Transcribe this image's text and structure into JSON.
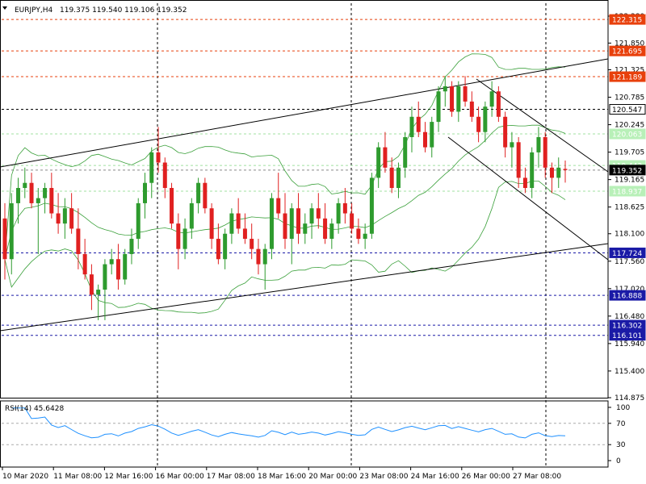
{
  "header": {
    "symbol": "EURJPY,H4",
    "ohlc": "119.375 119.540 119.106 119.352"
  },
  "rsi": {
    "label": "RSI(14) 45.6428",
    "levels": [
      "100",
      "70",
      "30",
      "0"
    ]
  },
  "price_axis": {
    "ticks": [
      "122.380",
      "121.850",
      "121.325",
      "120.785",
      "120.245",
      "119.705",
      "119.165",
      "118.625",
      "118.100",
      "117.560",
      "117.020",
      "116.480",
      "115.940",
      "115.400",
      "114.875"
    ]
  },
  "price_tags": [
    {
      "label": "122.315",
      "price": 122.315,
      "bg": "#e8400c",
      "fg": "#ffffff",
      "line": "#e8400c"
    },
    {
      "label": "121.695",
      "price": 121.695,
      "bg": "#e8400c",
      "fg": "#ffffff",
      "line": "#e8400c"
    },
    {
      "label": "121.189",
      "price": 121.189,
      "bg": "#e8400c",
      "fg": "#ffffff",
      "line": "#e8400c"
    },
    {
      "label": "120.547",
      "price": 120.547,
      "bg": "#ffffff",
      "fg": "#000000",
      "line": "#000000",
      "border": "#000000"
    },
    {
      "label": "120.063",
      "price": 120.063,
      "bg": "#b8f0b8",
      "fg": "#ffffff",
      "line": "#a0e0a0"
    },
    {
      "label": "119.443",
      "price": 119.443,
      "bg": "#b8f0b8",
      "fg": "#ffffff",
      "line": "#a0e0a0"
    },
    {
      "label": "119.352",
      "price": 119.352,
      "bg": "#000000",
      "fg": "#ffffff",
      "line": "#888888"
    },
    {
      "label": "118.937",
      "price": 118.937,
      "bg": "#b8f0b8",
      "fg": "#ffffff",
      "line": "#a0e0a0"
    },
    {
      "label": "117.724",
      "price": 117.724,
      "bg": "#1a1aa6",
      "fg": "#ffffff",
      "line": "#1a1aa6"
    },
    {
      "label": "116.888",
      "price": 116.888,
      "bg": "#1a1aa6",
      "fg": "#ffffff",
      "line": "#1a1aa6"
    },
    {
      "label": "116.302",
      "price": 116.302,
      "bg": "#1a1aa6",
      "fg": "#ffffff",
      "line": "#1a1aa6"
    },
    {
      "label": "116.101",
      "price": 116.101,
      "bg": "#1a1aa6",
      "fg": "#ffffff",
      "line": "#1a1aa6"
    }
  ],
  "time_axis": {
    "labels": [
      "10 Mar 2020",
      "11 Mar 08:00",
      "12 Mar 16:00",
      "16 Mar 00:00",
      "17 Mar 08:00",
      "18 Mar 16:00",
      "20 Mar 00:00",
      "23 Mar 08:00",
      "24 Mar 16:00",
      "26 Mar 00:00",
      "27 Mar 08:00"
    ]
  },
  "colors": {
    "bull": "#2e9b2e",
    "bear": "#e02020",
    "band": "#3aa03a",
    "trend": "#000000",
    "grid": "#000000"
  },
  "chart_data": {
    "type": "candlestick",
    "title": "EURJPY,H4",
    "ylim": [
      114.875,
      122.38
    ],
    "candles": [
      [
        118.4,
        118.7,
        117.2,
        117.6
      ],
      [
        117.6,
        118.9,
        117.3,
        118.7
      ],
      [
        118.7,
        119.2,
        118.3,
        119.0
      ],
      [
        119.0,
        119.4,
        118.8,
        119.1
      ],
      [
        119.1,
        119.3,
        118.6,
        118.7
      ],
      [
        118.7,
        119.0,
        117.7,
        118.8
      ],
      [
        118.8,
        119.1,
        118.5,
        119.0
      ],
      [
        119.0,
        119.3,
        118.4,
        118.5
      ],
      [
        118.5,
        118.9,
        118.1,
        118.3
      ],
      [
        118.3,
        118.8,
        118.0,
        118.6
      ],
      [
        118.6,
        118.9,
        118.1,
        118.2
      ],
      [
        118.2,
        118.6,
        117.4,
        117.7
      ],
      [
        117.7,
        118.0,
        117.2,
        117.3
      ],
      [
        117.3,
        117.5,
        116.6,
        116.9
      ],
      [
        116.9,
        117.1,
        116.4,
        117.0
      ],
      [
        117.0,
        117.6,
        116.4,
        117.5
      ],
      [
        117.5,
        117.8,
        117.3,
        117.6
      ],
      [
        117.6,
        117.9,
        117.0,
        117.2
      ],
      [
        117.2,
        117.8,
        117.1,
        117.7
      ],
      [
        117.7,
        118.2,
        117.5,
        118.0
      ],
      [
        118.0,
        118.8,
        117.8,
        118.7
      ],
      [
        118.7,
        119.3,
        118.4,
        119.1
      ],
      [
        119.1,
        119.8,
        118.8,
        119.7
      ],
      [
        119.7,
        120.2,
        119.3,
        119.5
      ],
      [
        119.5,
        119.6,
        118.8,
        119.0
      ],
      [
        119.0,
        119.1,
        118.2,
        118.3
      ],
      [
        118.3,
        118.5,
        117.4,
        117.8
      ],
      [
        117.8,
        118.4,
        117.6,
        118.2
      ],
      [
        118.2,
        118.8,
        118.0,
        118.7
      ],
      [
        118.7,
        119.2,
        118.5,
        119.1
      ],
      [
        119.1,
        119.2,
        118.5,
        118.6
      ],
      [
        118.6,
        118.7,
        117.8,
        118.0
      ],
      [
        118.0,
        118.3,
        117.5,
        117.6
      ],
      [
        117.6,
        118.2,
        117.4,
        118.1
      ],
      [
        118.1,
        118.6,
        117.9,
        118.5
      ],
      [
        118.5,
        118.8,
        118.1,
        118.2
      ],
      [
        118.2,
        118.5,
        117.9,
        118.0
      ],
      [
        118.0,
        118.3,
        117.6,
        117.8
      ],
      [
        117.8,
        118.0,
        117.3,
        117.5
      ],
      [
        117.5,
        117.9,
        117.0,
        117.8
      ],
      [
        117.8,
        118.9,
        117.6,
        118.8
      ],
      [
        118.8,
        119.3,
        118.4,
        118.5
      ],
      [
        118.5,
        118.9,
        117.8,
        118.0
      ],
      [
        118.0,
        118.7,
        117.5,
        118.6
      ],
      [
        118.6,
        118.9,
        117.9,
        118.1
      ],
      [
        118.1,
        118.5,
        117.9,
        118.3
      ],
      [
        118.3,
        118.7,
        118.0,
        118.6
      ],
      [
        118.6,
        118.9,
        118.2,
        118.4
      ],
      [
        118.4,
        118.7,
        117.9,
        118.0
      ],
      [
        118.0,
        118.4,
        117.8,
        118.3
      ],
      [
        118.3,
        118.8,
        118.1,
        118.7
      ],
      [
        118.7,
        119.0,
        118.3,
        118.5
      ],
      [
        118.5,
        118.7,
        118.1,
        118.2
      ],
      [
        118.2,
        118.4,
        117.9,
        118.0
      ],
      [
        118.0,
        118.3,
        117.8,
        118.1
      ],
      [
        118.1,
        119.3,
        118.0,
        119.2
      ],
      [
        119.2,
        119.9,
        119.0,
        119.8
      ],
      [
        119.8,
        120.1,
        119.3,
        119.4
      ],
      [
        119.4,
        119.6,
        118.9,
        119.0
      ],
      [
        119.0,
        119.5,
        118.8,
        119.4
      ],
      [
        119.4,
        120.1,
        119.2,
        120.0
      ],
      [
        120.0,
        120.6,
        119.7,
        120.4
      ],
      [
        120.4,
        120.7,
        120.0,
        120.1
      ],
      [
        120.1,
        120.3,
        119.7,
        119.8
      ],
      [
        119.8,
        120.4,
        119.6,
        120.3
      ],
      [
        120.3,
        121.0,
        120.1,
        120.9
      ],
      [
        120.9,
        121.2,
        120.6,
        121.0
      ],
      [
        121.0,
        121.1,
        120.4,
        120.5
      ],
      [
        120.5,
        121.1,
        120.3,
        121.0
      ],
      [
        121.0,
        121.2,
        120.6,
        120.7
      ],
      [
        120.7,
        120.9,
        120.3,
        120.4
      ],
      [
        120.4,
        120.6,
        119.9,
        120.1
      ],
      [
        120.1,
        120.7,
        119.9,
        120.6
      ],
      [
        120.6,
        121.1,
        120.4,
        120.9
      ],
      [
        120.9,
        121.0,
        120.3,
        120.4
      ],
      [
        120.4,
        120.5,
        119.6,
        119.8
      ],
      [
        119.8,
        120.1,
        119.4,
        119.9
      ],
      [
        119.9,
        120.0,
        119.0,
        119.2
      ],
      [
        119.2,
        119.4,
        118.9,
        119.0
      ],
      [
        119.0,
        119.8,
        118.8,
        119.7
      ],
      [
        119.7,
        120.2,
        119.4,
        120.0
      ],
      [
        120.0,
        120.1,
        119.2,
        119.4
      ],
      [
        119.4,
        119.5,
        118.9,
        119.2
      ],
      [
        119.2,
        119.6,
        119.0,
        119.4
      ],
      [
        119.375,
        119.54,
        119.106,
        119.352
      ]
    ]
  }
}
